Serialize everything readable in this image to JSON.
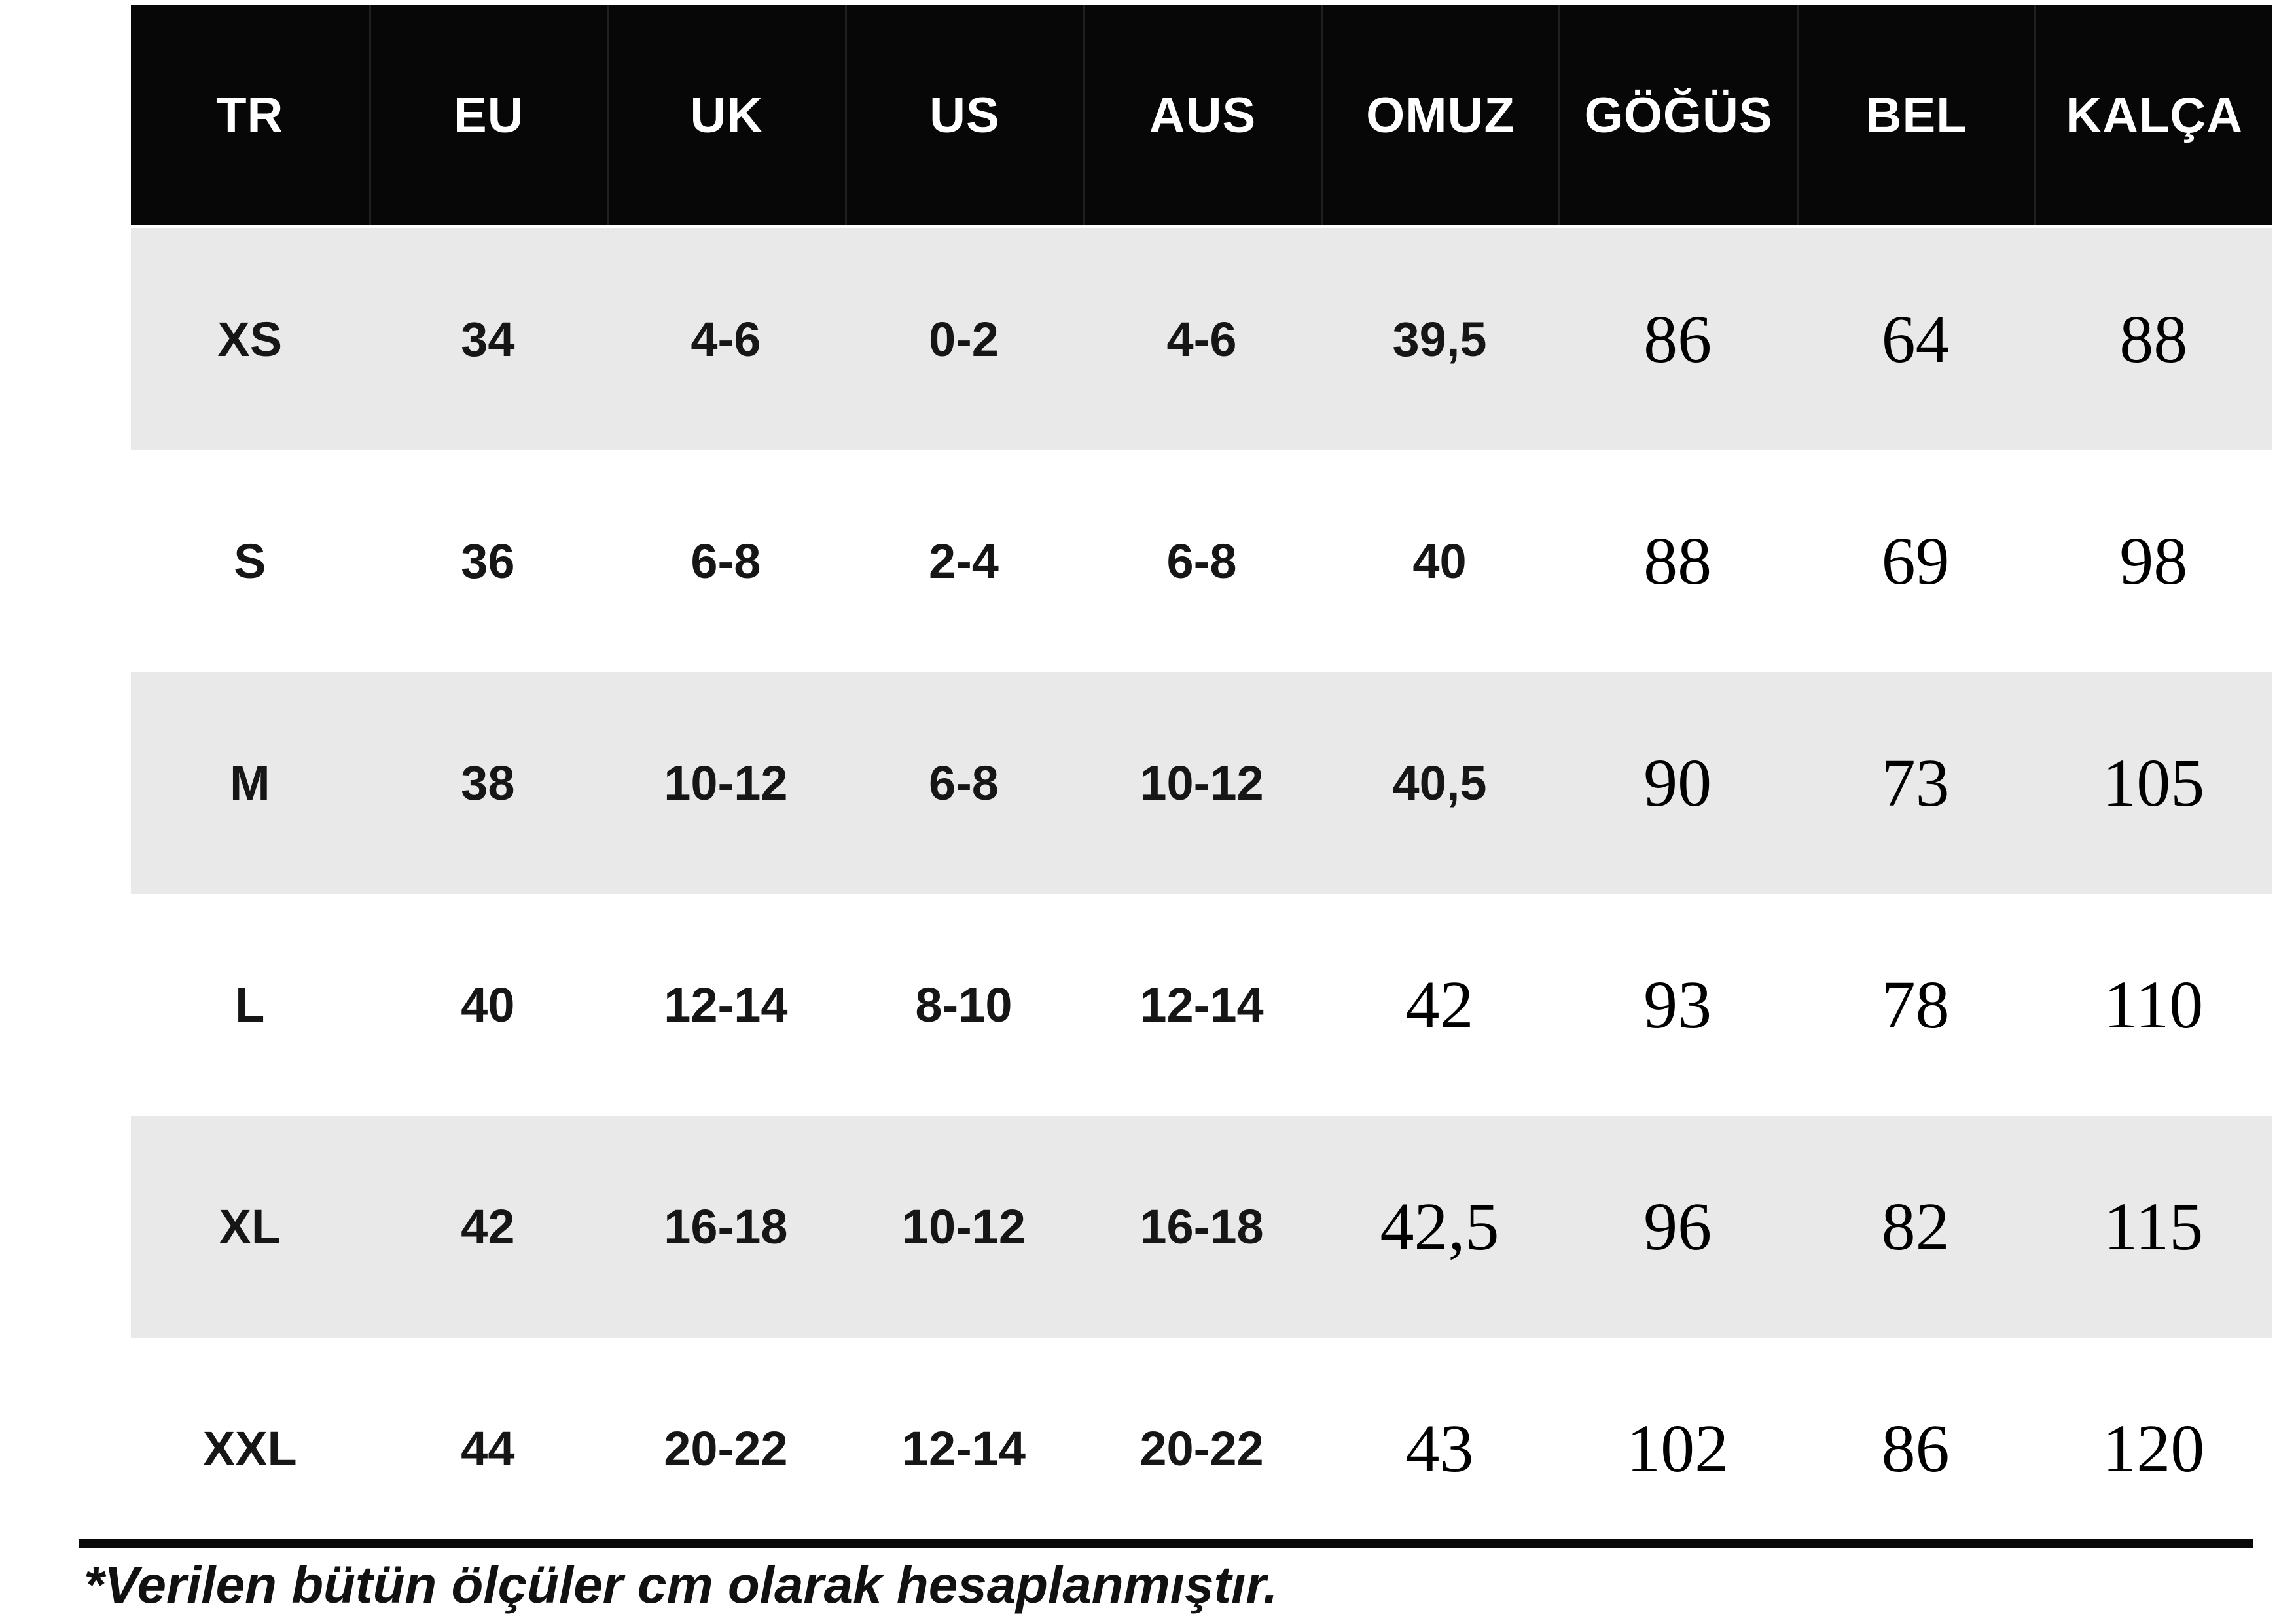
{
  "chart_data": {
    "type": "table",
    "columns": [
      "TR",
      "EU",
      "UK",
      "US",
      "AUS",
      "OMUZ",
      "GÖĞÜS",
      "BEL",
      "KALÇA"
    ],
    "rows": [
      [
        "XS",
        "34",
        "4-6",
        "0-2",
        "4-6",
        "39,5",
        "86",
        "64",
        "88"
      ],
      [
        "S",
        "36",
        "6-8",
        "2-4",
        "6-8",
        "40",
        "88",
        "69",
        "98"
      ],
      [
        "M",
        "38",
        "10-12",
        "6-8",
        "10-12",
        "40,5",
        "90",
        "73",
        "105"
      ],
      [
        "L",
        "40",
        "12-14",
        "8-10",
        "12-14",
        "42",
        "93",
        "78",
        "110"
      ],
      [
        "XL",
        "42",
        "16-18",
        "10-12",
        "16-18",
        "42,5",
        "96",
        "82",
        "115"
      ],
      [
        "XXL",
        "44",
        "20-22",
        "12-14",
        "20-22",
        "43",
        "102",
        "86",
        "120"
      ]
    ],
    "footnote": "*Verilen bütün ölçüler cm olarak hesaplanmıştır.",
    "layout_hints": {
      "header_style": "black band, white bold text",
      "striped_rows": "XS, M, XL shaded light gray",
      "units": "cm"
    }
  },
  "colors": {
    "header_bg": "#070707",
    "header_text": "#ffffff",
    "stripe": "#e9e9e9",
    "body_text": "#161616",
    "rule": "#0a0a0a"
  }
}
